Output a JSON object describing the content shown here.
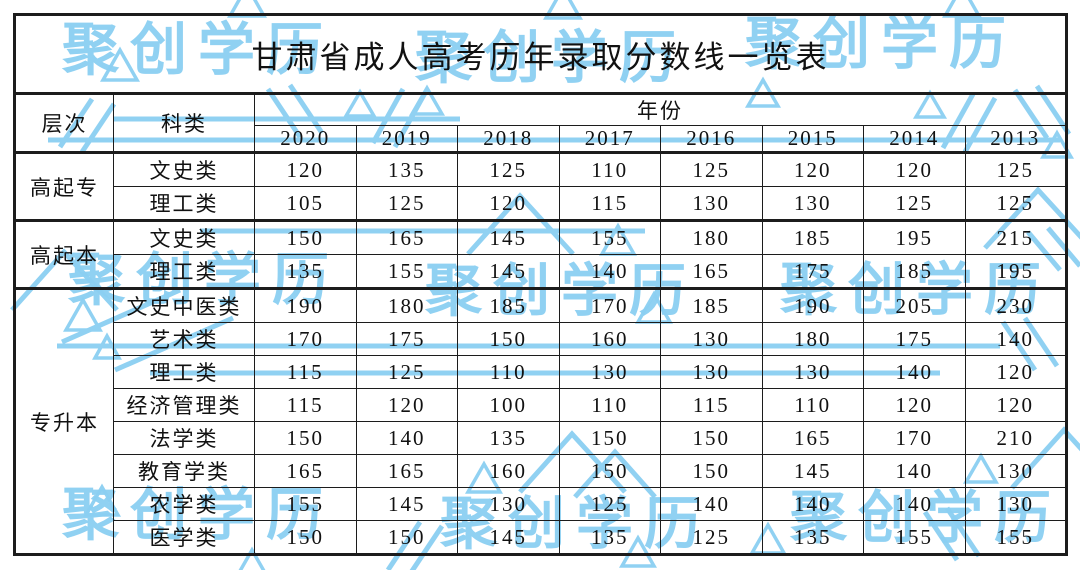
{
  "watermark": {
    "text": "聚创学历",
    "color": "#8BCFF2"
  },
  "table": {
    "title": "甘肃省成人高考历年录取分数线一览表",
    "headers": {
      "level": "层次",
      "category": "科类",
      "year": "年份"
    },
    "years": [
      "2020",
      "2019",
      "2018",
      "2017",
      "2016",
      "2015",
      "2014",
      "2013"
    ],
    "groups": [
      {
        "level": "高起专",
        "rows": [
          {
            "category": "文史类",
            "values": [
              "120",
              "135",
              "125",
              "110",
              "125",
              "120",
              "120",
              "125"
            ]
          },
          {
            "category": "理工类",
            "values": [
              "105",
              "125",
              "120",
              "115",
              "130",
              "130",
              "125",
              "125"
            ]
          }
        ]
      },
      {
        "level": "高起本",
        "rows": [
          {
            "category": "文史类",
            "values": [
              "150",
              "165",
              "145",
              "155",
              "180",
              "185",
              "195",
              "215"
            ]
          },
          {
            "category": "理工类",
            "values": [
              "135",
              "155",
              "145",
              "140",
              "165",
              "175",
              "185",
              "195"
            ]
          }
        ]
      },
      {
        "level": "专升本",
        "rows": [
          {
            "category": "文史中医类",
            "values": [
              "190",
              "180",
              "185",
              "170",
              "185",
              "190",
              "205",
              "230"
            ]
          },
          {
            "category": "艺术类",
            "values": [
              "170",
              "175",
              "150",
              "160",
              "130",
              "180",
              "175",
              "140"
            ]
          },
          {
            "category": "理工类",
            "values": [
              "115",
              "125",
              "110",
              "130",
              "130",
              "130",
              "140",
              "120"
            ]
          },
          {
            "category": "经济管理类",
            "values": [
              "115",
              "120",
              "100",
              "110",
              "115",
              "110",
              "120",
              "120"
            ]
          },
          {
            "category": "法学类",
            "values": [
              "150",
              "140",
              "135",
              "150",
              "150",
              "165",
              "170",
              "210"
            ]
          },
          {
            "category": "教育学类",
            "values": [
              "165",
              "165",
              "160",
              "150",
              "150",
              "145",
              "140",
              "130"
            ]
          },
          {
            "category": "农学类",
            "values": [
              "155",
              "145",
              "130",
              "125",
              "140",
              "140",
              "140",
              "130"
            ]
          },
          {
            "category": "医学类",
            "values": [
              "150",
              "150",
              "145",
              "135",
              "125",
              "135",
              "155",
              "155"
            ]
          }
        ]
      }
    ]
  },
  "chart_data": {
    "type": "table",
    "title": "甘肃省成人高考历年录取分数线一览表",
    "columns": [
      "层次",
      "科类",
      "2020",
      "2019",
      "2018",
      "2017",
      "2016",
      "2015",
      "2014",
      "2013"
    ],
    "rows": [
      [
        "高起专",
        "文史类",
        120,
        135,
        125,
        110,
        125,
        120,
        120,
        125
      ],
      [
        "高起专",
        "理工类",
        105,
        125,
        120,
        115,
        130,
        130,
        125,
        125
      ],
      [
        "高起本",
        "文史类",
        150,
        165,
        145,
        155,
        180,
        185,
        195,
        215
      ],
      [
        "高起本",
        "理工类",
        135,
        155,
        145,
        140,
        165,
        175,
        185,
        195
      ],
      [
        "专升本",
        "文史中医类",
        190,
        180,
        185,
        170,
        185,
        190,
        205,
        230
      ],
      [
        "专升本",
        "艺术类",
        170,
        175,
        150,
        160,
        130,
        180,
        175,
        140
      ],
      [
        "专升本",
        "理工类",
        115,
        125,
        110,
        130,
        130,
        130,
        140,
        120
      ],
      [
        "专升本",
        "经济管理类",
        115,
        120,
        100,
        110,
        115,
        110,
        120,
        120
      ],
      [
        "专升本",
        "法学类",
        150,
        140,
        135,
        150,
        150,
        165,
        170,
        210
      ],
      [
        "专升本",
        "教育学类",
        165,
        165,
        160,
        150,
        150,
        145,
        140,
        130
      ],
      [
        "专升本",
        "农学类",
        155,
        145,
        130,
        125,
        140,
        140,
        140,
        130
      ],
      [
        "专升本",
        "医学类",
        150,
        150,
        145,
        135,
        125,
        135,
        155,
        155
      ]
    ]
  }
}
